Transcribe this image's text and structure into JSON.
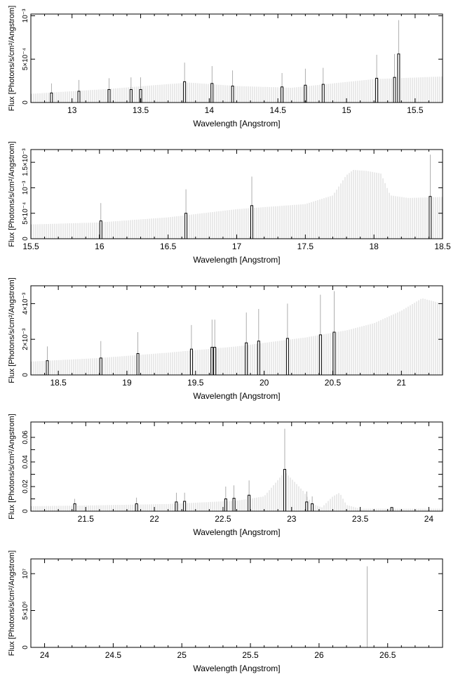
{
  "chart_data": [
    {
      "type": "bar",
      "xlabel": "Wavelength [Angstrom]",
      "ylabel": "Flux [Photons/s/cm²/Angstrom]",
      "xlim": [
        12.7,
        15.7
      ],
      "ylim": [
        0,
        0.00102
      ],
      "xticks": [
        13,
        13.5,
        14,
        14.5,
        15,
        15.5
      ],
      "xtick_labels": [
        "13",
        "13.5",
        "14",
        "14.5",
        "15",
        "15.5"
      ],
      "yticks": [
        0,
        0.0005,
        0.001
      ],
      "ytick_labels": [
        "0",
        "5×10⁻⁴",
        "10⁻³"
      ],
      "continuum": {
        "x": [
          12.7,
          13.0,
          13.3,
          13.6,
          13.85,
          14.2,
          14.6,
          14.9,
          15.2,
          15.7
        ],
        "y": [
          0.0001,
          0.00013,
          0.00016,
          0.0002,
          0.00023,
          0.00019,
          0.00017,
          0.00022,
          0.00027,
          0.0003
        ]
      },
      "lines": [
        {
          "x": 12.85,
          "value": 0.00011,
          "upper": 0.00022
        },
        {
          "x": 13.05,
          "value": 0.00013,
          "upper": 0.00026
        },
        {
          "x": 13.27,
          "value": 0.00015,
          "upper": 0.00028
        },
        {
          "x": 13.43,
          "value": 0.00015,
          "upper": 0.00029
        },
        {
          "x": 13.5,
          "value": 0.00015,
          "upper": 0.00029
        },
        {
          "x": 13.82,
          "value": 0.00024,
          "upper": 0.00046
        },
        {
          "x": 14.02,
          "value": 0.00022,
          "upper": 0.00042
        },
        {
          "x": 14.17,
          "value": 0.00019,
          "upper": 0.00037
        },
        {
          "x": 14.53,
          "value": 0.00018,
          "upper": 0.00034
        },
        {
          "x": 14.7,
          "value": 0.0002,
          "upper": 0.00039
        },
        {
          "x": 14.83,
          "value": 0.00021,
          "upper": 0.0004
        },
        {
          "x": 15.22,
          "value": 0.00028,
          "upper": 0.00055
        },
        {
          "x": 15.35,
          "value": 0.00029,
          "upper": 0.00056
        },
        {
          "x": 15.38,
          "value": 0.00056,
          "upper": 0.00095
        }
      ]
    },
    {
      "type": "bar",
      "xlabel": "Wavelength [Angstrom]",
      "ylabel": "Flux [Photons/s/cm²/Angstrom]",
      "xlim": [
        15.5,
        18.5
      ],
      "ylim": [
        0,
        0.00175
      ],
      "xticks": [
        15.5,
        16,
        16.5,
        17,
        17.5,
        18,
        18.5
      ],
      "xtick_labels": [
        "15.5",
        "16",
        "16.5",
        "17",
        "17.5",
        "18",
        "18.5"
      ],
      "yticks": [
        0,
        0.0005,
        0.001,
        0.0015
      ],
      "ytick_labels": [
        "0",
        "5×10⁻⁴",
        "10⁻³",
        "1.5×10⁻³"
      ],
      "continuum": {
        "x": [
          15.5,
          16.0,
          16.5,
          17.0,
          17.5,
          17.7,
          17.8,
          17.85,
          17.95,
          18.05,
          18.12,
          18.25,
          18.5
        ],
        "y": [
          0.00028,
          0.00032,
          0.00042,
          0.00058,
          0.00068,
          0.00085,
          0.00125,
          0.00135,
          0.00133,
          0.00128,
          0.00085,
          0.0008,
          0.00082
        ]
      },
      "lines": [
        {
          "x": 16.01,
          "value": 0.00035,
          "upper": 0.0007
        },
        {
          "x": 16.63,
          "value": 0.0005,
          "upper": 0.00097
        },
        {
          "x": 17.11,
          "value": 0.00065,
          "upper": 0.00122
        },
        {
          "x": 18.41,
          "value": 0.00083,
          "upper": 0.00165
        }
      ]
    },
    {
      "type": "bar",
      "xlabel": "Wavelength [Angstrom]",
      "ylabel": "Flux [Photons/s/cm²/Angstrom]",
      "xlim": [
        18.3,
        21.3
      ],
      "ylim": [
        0,
        0.005
      ],
      "xticks": [
        18.5,
        19,
        19.5,
        20,
        20.5,
        21
      ],
      "xtick_labels": [
        "18.5",
        "19",
        "19.5",
        "20",
        "20.5",
        "21"
      ],
      "yticks": [
        0,
        0.002,
        0.004
      ],
      "ytick_labels": [
        "0",
        "2×10⁻³",
        "4×10⁻³"
      ],
      "continuum": {
        "x": [
          18.3,
          18.8,
          19.3,
          19.8,
          20.3,
          20.6,
          20.8,
          21.0,
          21.15,
          21.3
        ],
        "y": [
          0.00075,
          0.00095,
          0.00125,
          0.0016,
          0.0021,
          0.0025,
          0.0029,
          0.0036,
          0.0043,
          0.004
        ]
      },
      "lines": [
        {
          "x": 18.42,
          "value": 0.0008,
          "upper": 0.0016
        },
        {
          "x": 18.81,
          "value": 0.00095,
          "upper": 0.0019
        },
        {
          "x": 19.08,
          "value": 0.0012,
          "upper": 0.0024
        },
        {
          "x": 19.47,
          "value": 0.00145,
          "upper": 0.0028
        },
        {
          "x": 19.62,
          "value": 0.00155,
          "upper": 0.0031
        },
        {
          "x": 19.64,
          "value": 0.00155,
          "upper": 0.0031
        },
        {
          "x": 19.87,
          "value": 0.0018,
          "upper": 0.0035
        },
        {
          "x": 19.96,
          "value": 0.0019,
          "upper": 0.0037
        },
        {
          "x": 20.17,
          "value": 0.00205,
          "upper": 0.004
        },
        {
          "x": 20.41,
          "value": 0.00225,
          "upper": 0.0045
        },
        {
          "x": 20.51,
          "value": 0.0024,
          "upper": 0.0047
        }
      ]
    },
    {
      "type": "bar",
      "xlabel": "Wavelength [Angstrom]",
      "ylabel": "Flux [Photons/s/cm²/Angstrom]",
      "xlim": [
        21.1,
        24.1
      ],
      "ylim": [
        0,
        0.0725
      ],
      "xticks": [
        21.5,
        22,
        22.5,
        23,
        23.5,
        24
      ],
      "xtick_labels": [
        "21.5",
        "22",
        "22.5",
        "23",
        "23.5",
        "24"
      ],
      "yticks": [
        0,
        0.01,
        0.02,
        0.03,
        0.04,
        0.05,
        0.06
      ],
      "ytick_labels": [
        "0",
        "",
        "0.02",
        "",
        "0.04",
        "",
        "0.06"
      ],
      "continuum": {
        "x": [
          21.1,
          21.6,
          22.1,
          22.6,
          22.8,
          22.95,
          23.08,
          23.15,
          23.22,
          23.3,
          23.35,
          23.4,
          23.5,
          24.1
        ],
        "y": [
          0.004,
          0.0048,
          0.0058,
          0.0085,
          0.012,
          0.032,
          0.017,
          0.006,
          0.003,
          0.012,
          0.015,
          0.005,
          0.002,
          0.002
        ]
      },
      "lines": [
        {
          "x": 21.42,
          "value": 0.006,
          "upper": 0.01
        },
        {
          "x": 21.87,
          "value": 0.006,
          "upper": 0.011
        },
        {
          "x": 22.16,
          "value": 0.0075,
          "upper": 0.015
        },
        {
          "x": 22.22,
          "value": 0.008,
          "upper": 0.015
        },
        {
          "x": 22.52,
          "value": 0.01,
          "upper": 0.02
        },
        {
          "x": 22.58,
          "value": 0.0105,
          "upper": 0.021
        },
        {
          "x": 22.69,
          "value": 0.013,
          "upper": 0.025
        },
        {
          "x": 22.95,
          "value": 0.034,
          "upper": 0.067
        },
        {
          "x": 23.11,
          "value": 0.0075,
          "upper": 0.016
        },
        {
          "x": 23.15,
          "value": 0.006,
          "upper": 0.012
        },
        {
          "x": 23.73,
          "value": 0.003,
          "upper": 0.003
        }
      ]
    },
    {
      "type": "bar",
      "xlabel": "Wavelength [Angstrom]",
      "ylabel": "Flux [Photons/s/cm²/Angstrom]",
      "xlim": [
        23.9,
        26.9
      ],
      "ylim": [
        0,
        12000000
      ],
      "xticks": [
        24,
        24.5,
        25,
        25.5,
        26,
        26.5
      ],
      "xtick_labels": [
        "24",
        "24.5",
        "25",
        "25.5",
        "26",
        "26.5"
      ],
      "yticks": [
        0,
        5000000,
        10000000
      ],
      "ytick_labels": [
        "0",
        "5×10⁶",
        "10⁷"
      ],
      "continuum": {
        "x": [
          23.9,
          26.9
        ],
        "y": [
          0,
          0
        ]
      },
      "lines": [
        {
          "x": 26.35,
          "value": 0,
          "upper": 11000000
        }
      ]
    }
  ]
}
